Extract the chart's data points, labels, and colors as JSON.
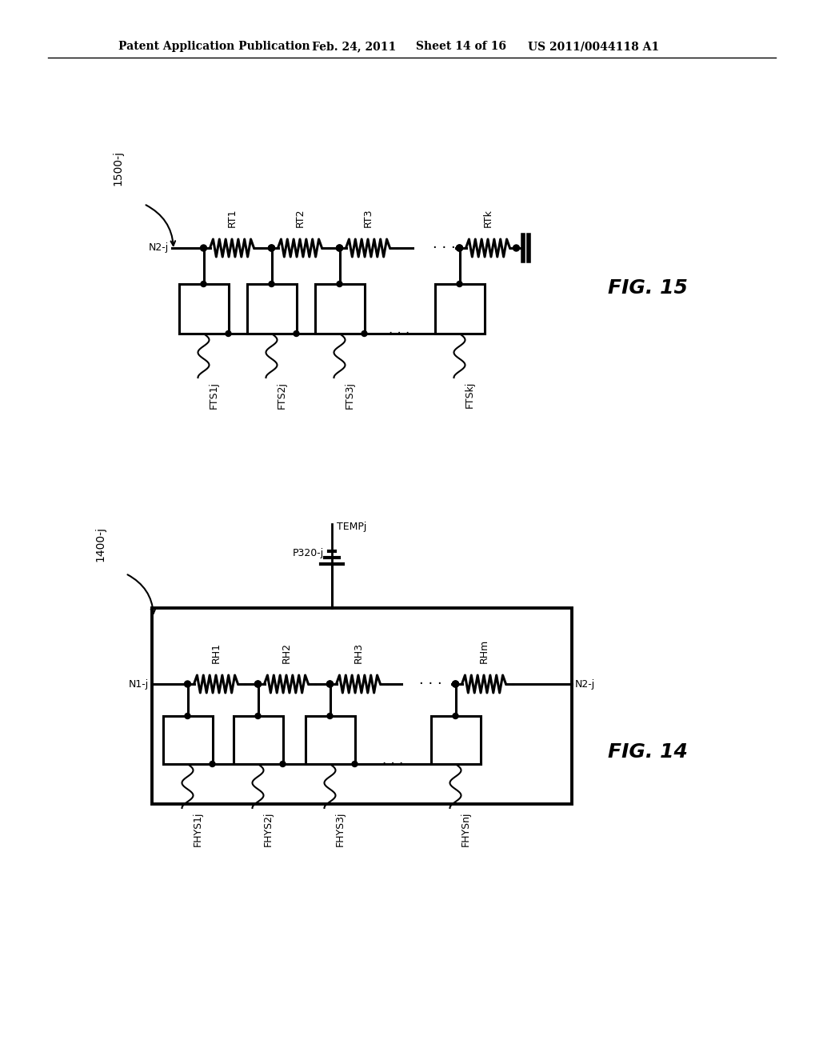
{
  "bg_color": "#ffffff",
  "header_text": "Patent Application Publication",
  "header_date": "Feb. 24, 2011",
  "header_sheet": "Sheet 14 of 16",
  "header_patent": "US 2011/0044118 A1",
  "fig15_label": "FIG. 15",
  "fig14_label": "FIG. 14",
  "fig15_ref": "1500-j",
  "fig15_node": "N2-j",
  "fig15_resistors": [
    "RT1",
    "RT2",
    "RT3",
    "RTk"
  ],
  "fig15_fts": [
    "FTS1j",
    "FTS2j",
    "FTS3j",
    "FTSkj"
  ],
  "fig14_ref": "1400-j",
  "fig14_node_left": "N1-j",
  "fig14_node_right": "N2-j",
  "fig14_resistors": [
    "RH1",
    "RH2",
    "RH3",
    "RHm"
  ],
  "fig14_fhys": [
    "FHYS1j",
    "FHYS2j",
    "FHYS3j",
    "FHYSnj"
  ],
  "fig14_port": "P320-j",
  "fig14_temp": "TEMPj"
}
